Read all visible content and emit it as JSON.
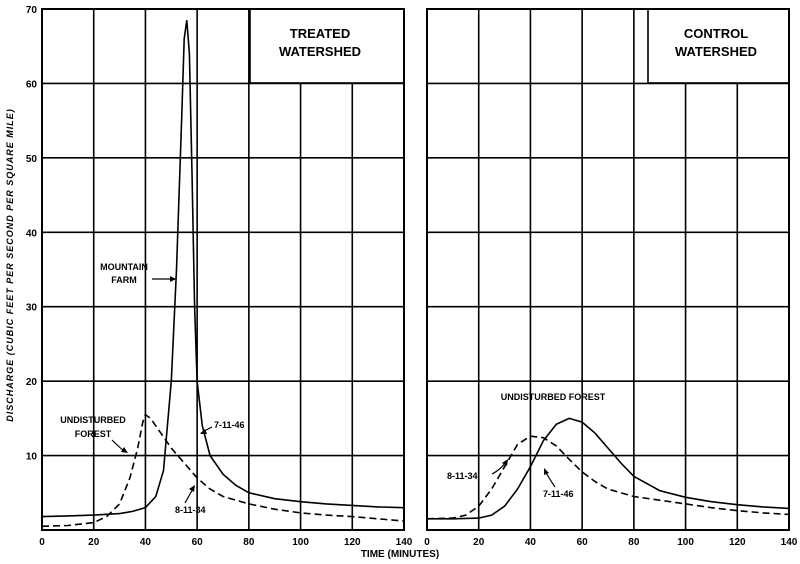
{
  "chart_data": [
    {
      "type": "line",
      "title": "TREATED WATERSHED",
      "title_lines": [
        "TREATED",
        "WATERSHED"
      ],
      "xlabel": "TIME (MINUTES)",
      "ylabel": "DISCHARGE (CUBIC FEET PER SECOND PER SQUARE MILE)",
      "xlim": [
        0,
        140
      ],
      "ylim": [
        0,
        70
      ],
      "x_ticks": [
        0,
        20,
        40,
        60,
        80,
        100,
        120,
        140
      ],
      "y_ticks": [
        10,
        20,
        30,
        40,
        50,
        60,
        70
      ],
      "grid": true,
      "series": [
        {
          "name": "7-11-46",
          "style": "solid",
          "points": [
            [
              0,
              1.8
            ],
            [
              10,
              1.9
            ],
            [
              20,
              2
            ],
            [
              30,
              2.2
            ],
            [
              35,
              2.5
            ],
            [
              40,
              3
            ],
            [
              44,
              4.5
            ],
            [
              47,
              8
            ],
            [
              50,
              20
            ],
            [
              52,
              35
            ],
            [
              54,
              55
            ],
            [
              55,
              66
            ],
            [
              56,
              68.5
            ],
            [
              57,
              64
            ],
            [
              58,
              48
            ],
            [
              59,
              30
            ],
            [
              60,
              20
            ],
            [
              62,
              14
            ],
            [
              65,
              10
            ],
            [
              70,
              7.5
            ],
            [
              75,
              6
            ],
            [
              80,
              5
            ],
            [
              90,
              4.2
            ],
            [
              100,
              3.8
            ],
            [
              110,
              3.5
            ],
            [
              120,
              3.3
            ],
            [
              130,
              3.1
            ],
            [
              140,
              3
            ]
          ]
        },
        {
          "name": "8-11-34",
          "style": "dashed",
          "points": [
            [
              0,
              0.5
            ],
            [
              10,
              0.6
            ],
            [
              20,
              1
            ],
            [
              25,
              1.8
            ],
            [
              30,
              3.5
            ],
            [
              34,
              7
            ],
            [
              37,
              11
            ],
            [
              39,
              14.5
            ],
            [
              40,
              15.5
            ],
            [
              42,
              15
            ],
            [
              46,
              13
            ],
            [
              50,
              11
            ],
            [
              55,
              9
            ],
            [
              60,
              7
            ],
            [
              65,
              5.5
            ],
            [
              70,
              4.5
            ],
            [
              80,
              3.5
            ],
            [
              90,
              2.8
            ],
            [
              100,
              2.3
            ],
            [
              110,
              2
            ],
            [
              120,
              1.8
            ],
            [
              130,
              1.5
            ],
            [
              140,
              1.2
            ]
          ]
        }
      ],
      "annotations": [
        {
          "lines": [
            "MOUNTAIN",
            "FARM"
          ]
        },
        {
          "lines": [
            "UNDISTURBED",
            "FOREST"
          ]
        },
        {
          "lines": [
            "7-11-46"
          ]
        },
        {
          "lines": [
            "8-11-34"
          ]
        }
      ]
    },
    {
      "type": "line",
      "title": "CONTROL WATERSHED",
      "title_lines": [
        "CONTROL",
        "WATERSHED"
      ],
      "xlabel": "TIME (MINUTES)",
      "ylabel": "",
      "xlim": [
        0,
        140
      ],
      "ylim": [
        0,
        70
      ],
      "x_ticks": [
        0,
        20,
        40,
        60,
        80,
        100,
        120,
        140
      ],
      "grid": true,
      "series": [
        {
          "name": "7-11-46",
          "style": "solid",
          "points": [
            [
              0,
              1.5
            ],
            [
              10,
              1.5
            ],
            [
              20,
              1.6
            ],
            [
              25,
              2
            ],
            [
              30,
              3.2
            ],
            [
              35,
              5.5
            ],
            [
              40,
              8.5
            ],
            [
              45,
              12
            ],
            [
              50,
              14.2
            ],
            [
              55,
              15
            ],
            [
              60,
              14.5
            ],
            [
              65,
              13
            ],
            [
              70,
              11
            ],
            [
              75,
              9
            ],
            [
              80,
              7.2
            ],
            [
              90,
              5.3
            ],
            [
              100,
              4.4
            ],
            [
              110,
              3.8
            ],
            [
              120,
              3.4
            ],
            [
              130,
              3.1
            ],
            [
              140,
              2.9
            ]
          ]
        },
        {
          "name": "8-11-34",
          "style": "dashed",
          "points": [
            [
              0,
              1.5
            ],
            [
              10,
              1.6
            ],
            [
              15,
              2
            ],
            [
              20,
              3.2
            ],
            [
              25,
              5.5
            ],
            [
              30,
              8.5
            ],
            [
              35,
              11.5
            ],
            [
              40,
              12.6
            ],
            [
              45,
              12.4
            ],
            [
              50,
              11.3
            ],
            [
              55,
              9.5
            ],
            [
              60,
              7.8
            ],
            [
              65,
              6.5
            ],
            [
              70,
              5.5
            ],
            [
              80,
              4.5
            ],
            [
              90,
              4
            ],
            [
              100,
              3.5
            ],
            [
              110,
              3
            ],
            [
              120,
              2.6
            ],
            [
              130,
              2.3
            ],
            [
              140,
              2.1
            ]
          ]
        }
      ],
      "annotations": [
        {
          "lines": [
            "UNDISTURBED FOREST"
          ]
        },
        {
          "lines": [
            "8-11-34"
          ]
        },
        {
          "lines": [
            "7-11-46"
          ]
        }
      ]
    }
  ]
}
